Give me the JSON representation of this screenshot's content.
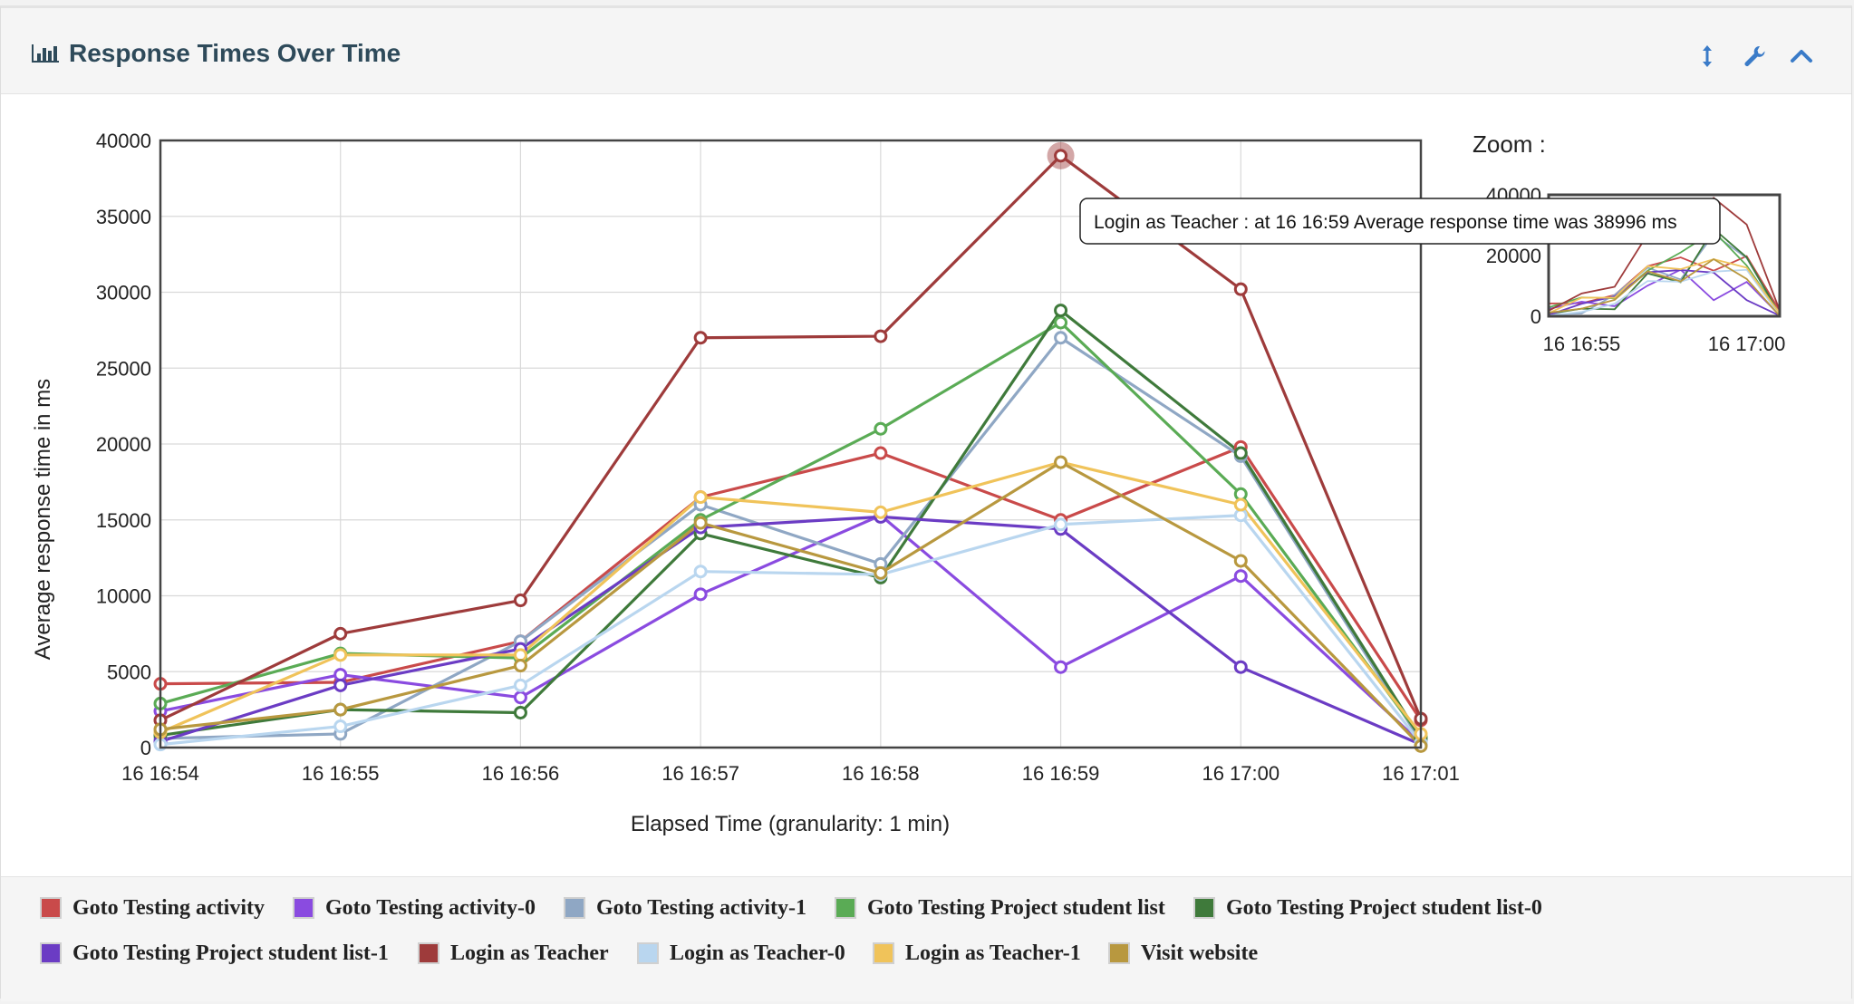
{
  "panel": {
    "title": "Response Times Over Time",
    "title_icon": "bar-chart-icon",
    "tools": [
      {
        "name": "resize-icon",
        "symbol": "↕"
      },
      {
        "name": "wrench-icon",
        "symbol": "wrench"
      },
      {
        "name": "collapse-chevron-icon",
        "symbol": "^"
      }
    ]
  },
  "zoom": {
    "label": "Zoom :"
  },
  "tooltip": {
    "text": "Login as Teacher : at 16 16:59 Average response time was 38996 ms"
  },
  "chart_data": {
    "type": "line",
    "title": "",
    "xlabel": "Elapsed Time (granularity: 1 min)",
    "ylabel": "Average response time in ms",
    "categories": [
      "16 16:54",
      "16 16:55",
      "16 16:56",
      "16 16:57",
      "16 16:58",
      "16 16:59",
      "16 17:00",
      "16 17:01"
    ],
    "ylim": [
      0,
      40000
    ],
    "yticks": [
      0,
      5000,
      10000,
      15000,
      20000,
      25000,
      30000,
      35000,
      40000
    ],
    "grid": true,
    "legend_position": "bottom",
    "highlight": {
      "series": "Login as Teacher",
      "index": 5
    },
    "zoom_overview": {
      "yticks": [
        "0",
        "20000",
        "40000"
      ],
      "xticks": [
        "16 16:55",
        "16 17:00"
      ]
    },
    "series": [
      {
        "name": "Goto Testing activity",
        "color": "#c94a4a",
        "values": [
          4200,
          4300,
          7000,
          16500,
          19400,
          15000,
          19800,
          1800
        ]
      },
      {
        "name": "Goto Testing activity-0",
        "color": "#8a4be0",
        "values": [
          2400,
          4800,
          3300,
          10100,
          15300,
          5300,
          11300,
          300
        ]
      },
      {
        "name": "Goto Testing activity-1",
        "color": "#8fa7c4",
        "values": [
          600,
          900,
          7000,
          16000,
          12100,
          27000,
          19200,
          400
        ]
      },
      {
        "name": "Goto Testing Project student list",
        "color": "#5aab55",
        "values": [
          2900,
          6200,
          5900,
          15000,
          21000,
          28000,
          16700,
          700
        ]
      },
      {
        "name": "Goto Testing Project student list-0",
        "color": "#3f7a3b",
        "values": [
          800,
          2500,
          2300,
          14100,
          11200,
          28800,
          19400,
          600
        ]
      },
      {
        "name": "Goto Testing Project student list-1",
        "color": "#6b3cc4",
        "values": [
          400,
          4100,
          6500,
          14500,
          15200,
          14400,
          5300,
          200
        ]
      },
      {
        "name": "Login as Teacher",
        "color": "#9e3b3b",
        "values": [
          1800,
          7500,
          9700,
          27000,
          27100,
          38996,
          30200,
          1900
        ]
      },
      {
        "name": "Login as Teacher-0",
        "color": "#b9d6ef",
        "values": [
          200,
          1400,
          4100,
          11600,
          11400,
          14700,
          15300,
          300
        ]
      },
      {
        "name": "Login as Teacher-1",
        "color": "#f0c35a",
        "values": [
          1000,
          6100,
          6100,
          16500,
          15500,
          18800,
          16000,
          900
        ]
      },
      {
        "name": "Visit website",
        "color": "#b8983f",
        "values": [
          1200,
          2500,
          5400,
          14800,
          11500,
          18800,
          12300,
          100
        ]
      }
    ]
  }
}
